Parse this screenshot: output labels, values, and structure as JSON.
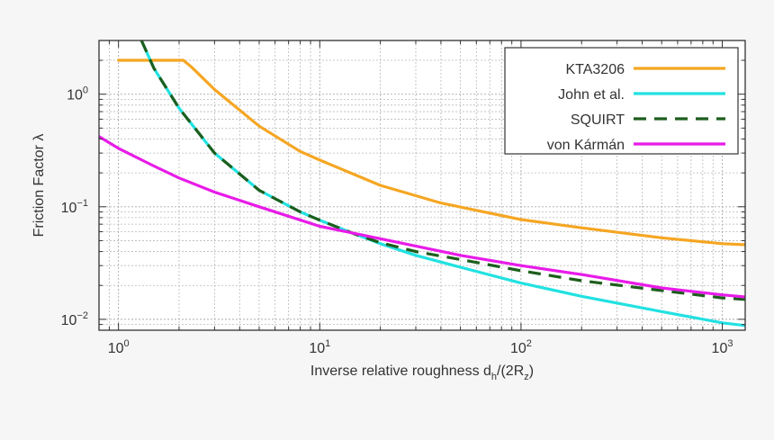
{
  "chart_data": {
    "type": "line",
    "xscale": "log",
    "yscale": "log",
    "xlabel": "Inverse relative roughness d",
    "xlabel_sub1": "h",
    "xlabel_mid": "/(2R",
    "xlabel_sub2": "z",
    "xlabel_end": ")",
    "ylabel": "Friction Factor λ",
    "xlim": [
      0.8,
      1300
    ],
    "ylim": [
      0.008,
      3.0
    ],
    "x_ticks": [
      {
        "value": 1,
        "base": "10",
        "exp": "0"
      },
      {
        "value": 10,
        "base": "10",
        "exp": "1"
      },
      {
        "value": 100,
        "base": "10",
        "exp": "2"
      },
      {
        "value": 1000,
        "base": "10",
        "exp": "3"
      }
    ],
    "y_ticks": [
      {
        "value": 1,
        "base": "10",
        "exp": "0"
      },
      {
        "value": 0.1,
        "base": "10",
        "exp": "−1"
      },
      {
        "value": 0.01,
        "base": "10",
        "exp": "−2"
      }
    ],
    "grid": true,
    "legend_position": "top-right",
    "series": [
      {
        "name": "KTA3206",
        "color": "#f5a623",
        "dash": "solid",
        "x": [
          1,
          2.1,
          2.3,
          3,
          5,
          8,
          10,
          20,
          40,
          100,
          200,
          500,
          1000,
          1300
        ],
        "y": [
          2.0,
          2.0,
          1.75,
          1.1,
          0.52,
          0.31,
          0.26,
          0.155,
          0.108,
          0.077,
          0.065,
          0.053,
          0.047,
          0.046
        ]
      },
      {
        "name": "John et al.",
        "color": "#22e1e1",
        "dash": "solid",
        "x": [
          1.3,
          1.5,
          2,
          3,
          5,
          8,
          10,
          15,
          20,
          30,
          50,
          100,
          200,
          500,
          1000,
          1300
        ],
        "y": [
          3.0,
          1.7,
          0.75,
          0.3,
          0.14,
          0.09,
          0.076,
          0.057,
          0.047,
          0.037,
          0.029,
          0.021,
          0.016,
          0.0117,
          0.0093,
          0.0088
        ]
      },
      {
        "name": "SQUIRT",
        "color": "#1d5e1d",
        "dash": "dashed",
        "x": [
          1.3,
          1.5,
          2,
          3,
          5,
          8,
          10,
          15,
          20,
          30,
          50,
          100,
          200,
          500,
          1000,
          1300
        ],
        "y": [
          3.0,
          1.7,
          0.75,
          0.3,
          0.14,
          0.09,
          0.076,
          0.057,
          0.048,
          0.04,
          0.034,
          0.027,
          0.022,
          0.018,
          0.0155,
          0.015
        ]
      },
      {
        "name": "von Kármán",
        "color": "#e81be8",
        "dash": "solid",
        "x": [
          0.8,
          1,
          1.5,
          2,
          3,
          5,
          10,
          20,
          50,
          100,
          200,
          500,
          1000,
          1300
        ],
        "y": [
          0.42,
          0.33,
          0.23,
          0.18,
          0.135,
          0.1,
          0.067,
          0.052,
          0.037,
          0.03,
          0.025,
          0.019,
          0.0165,
          0.0158
        ]
      }
    ]
  }
}
